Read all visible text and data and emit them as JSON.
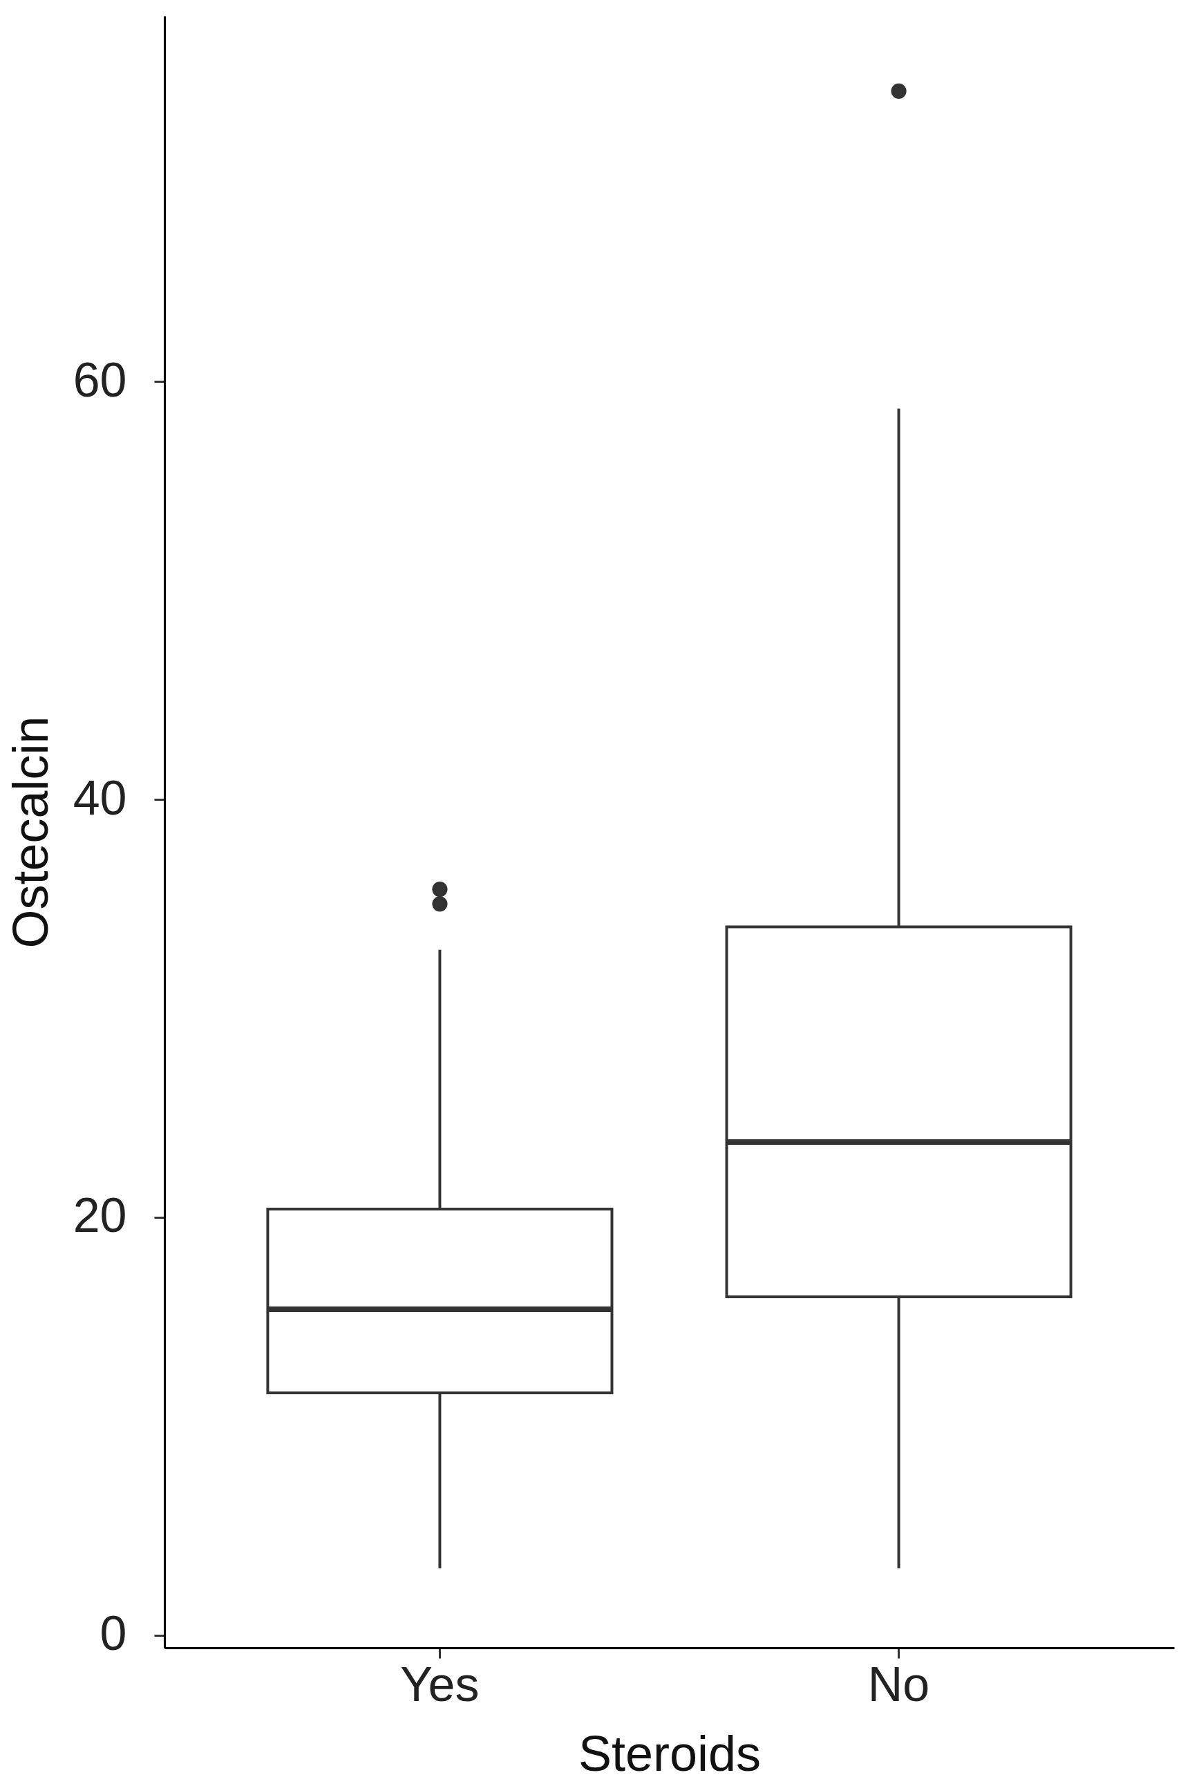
{
  "chart_data": {
    "type": "box",
    "xlabel": "Steroids",
    "ylabel": "Ostecalcin",
    "categories": [
      "Yes",
      "No"
    ],
    "boxes": [
      {
        "low": 3.2,
        "q1": 11.6,
        "median": 15.6,
        "q3": 20.4,
        "high": 32.8,
        "outliers": [
          35.0,
          35.7
        ]
      },
      {
        "low": 3.2,
        "q1": 16.2,
        "median": 23.6,
        "q3": 33.9,
        "high": 58.7,
        "outliers": [
          73.9
        ]
      }
    ],
    "color": "#333333",
    "ylim": [
      -0.6,
      77.5
    ],
    "yticks": [
      0,
      20,
      40,
      60
    ],
    "grid": false
  }
}
